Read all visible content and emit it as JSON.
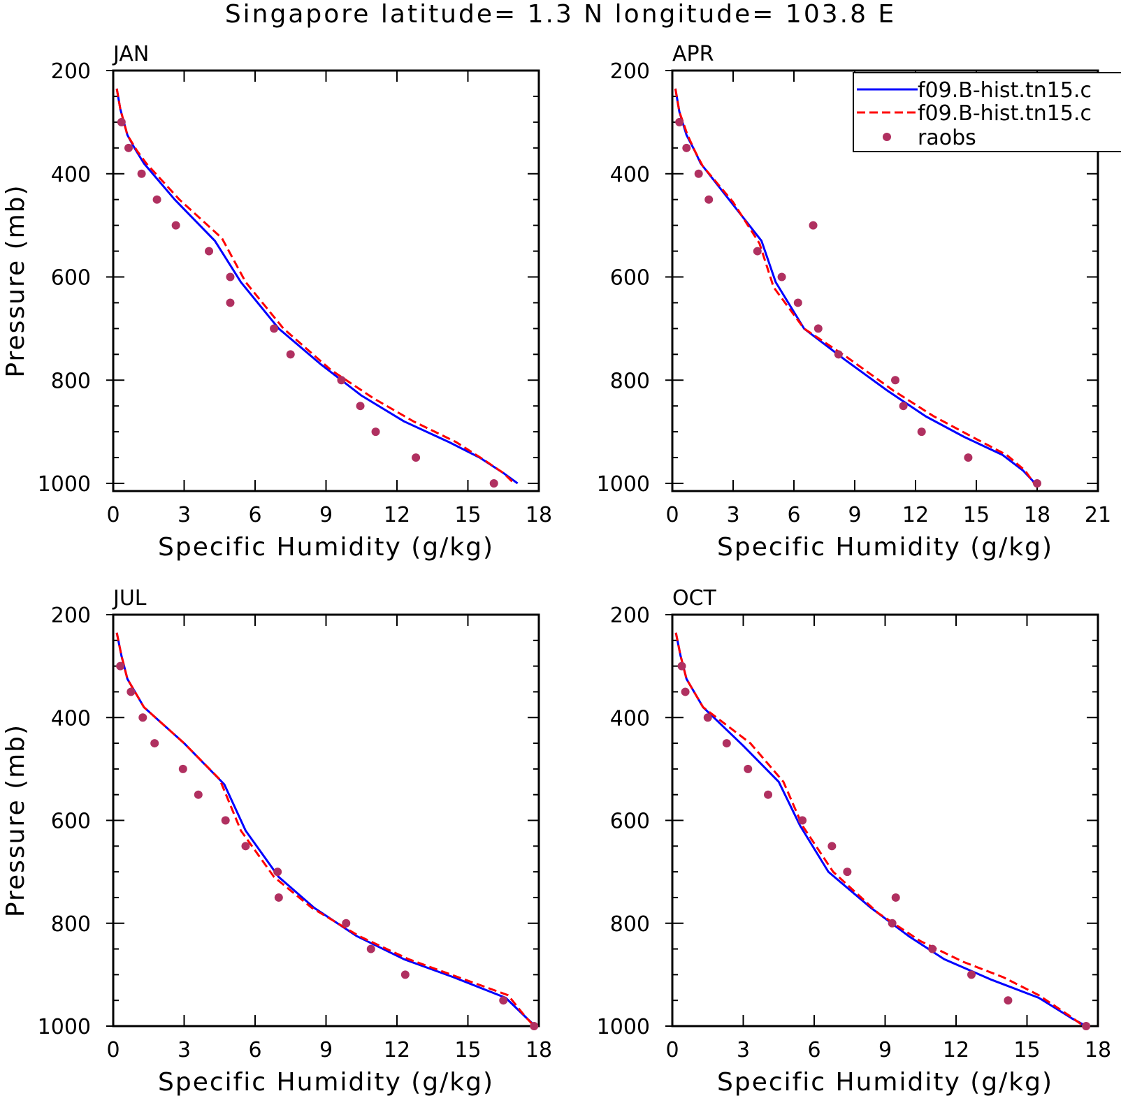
{
  "title": "Singapore  latitude= 1.3 N longitude= 103.8 E",
  "colors": {
    "model1": "#0000ff",
    "model2": "#ff0000",
    "obs": "#b03060",
    "axis": "#000000"
  },
  "legend": {
    "placement": "top-right of APR panel",
    "entries": [
      {
        "label": "f09.B-hist.tn15.c",
        "style": "solid",
        "color": "#0000ff"
      },
      {
        "label": "f09.B-hist.tn15.c",
        "style": "dashed",
        "color": "#ff0000"
      },
      {
        "label": "raobs",
        "style": "dot",
        "color": "#b03060"
      }
    ]
  },
  "chart_data": [
    {
      "type": "line",
      "panel_label": "JAN",
      "xlabel": "Specific Humidity (g/kg)",
      "ylabel": "Pressure (mb)",
      "xlim": [
        0,
        18
      ],
      "ylim": [
        1000,
        200
      ],
      "y_inverted": true,
      "xticks": [
        0,
        3,
        6,
        9,
        12,
        15,
        18
      ],
      "yticks": [
        200,
        400,
        600,
        800,
        1000
      ],
      "series": [
        {
          "name": "f09.B-hist.tn15.c",
          "style": "solid",
          "color": "#0000ff",
          "x": [
            0.15,
            0.3,
            0.6,
            0.9,
            1.3,
            2.6,
            4.3,
            5.4,
            7.0,
            8.8,
            10.5,
            12.3,
            14.2,
            15.5,
            16.5,
            17.1
          ],
          "y": [
            235,
            275,
            325,
            350,
            380,
            450,
            530,
            610,
            700,
            770,
            830,
            880,
            920,
            950,
            980,
            1000
          ]
        },
        {
          "name": "f09.B-hist.tn15.c",
          "style": "dashed",
          "color": "#ff0000",
          "x": [
            0.15,
            0.3,
            0.6,
            1.0,
            1.4,
            2.8,
            4.6,
            5.6,
            7.2,
            9.2,
            11.0,
            12.7,
            14.5,
            15.7,
            16.5,
            16.95
          ],
          "y": [
            235,
            275,
            325,
            355,
            380,
            450,
            525,
            610,
            700,
            780,
            835,
            880,
            920,
            955,
            980,
            1000
          ]
        },
        {
          "name": "raobs",
          "style": "dot",
          "color": "#b03060",
          "x": [
            0.35,
            0.65,
            1.2,
            1.85,
            2.65,
            4.05,
            4.95,
            4.95,
            6.8,
            7.5,
            9.65,
            10.45,
            11.1,
            12.8,
            16.1
          ],
          "y": [
            300,
            350,
            400,
            450,
            500,
            550,
            600,
            650,
            700,
            750,
            800,
            850,
            900,
            950,
            1000
          ]
        }
      ]
    },
    {
      "type": "line",
      "panel_label": "APR",
      "xlabel": "Specific Humidity (g/kg)",
      "ylabel": "",
      "xlim": [
        0,
        21
      ],
      "ylim": [
        1000,
        200
      ],
      "y_inverted": true,
      "xticks": [
        0,
        3,
        6,
        9,
        12,
        15,
        18,
        21
      ],
      "yticks": [
        200,
        400,
        600,
        800,
        1000
      ],
      "series": [
        {
          "name": "f09.B-hist.tn15.c",
          "style": "solid",
          "color": "#0000ff",
          "x": [
            0.15,
            0.35,
            0.7,
            1.1,
            1.4,
            2.9,
            4.4,
            5.1,
            6.5,
            8.5,
            10.6,
            12.5,
            14.4,
            16.3,
            17.3,
            17.9
          ],
          "y": [
            235,
            280,
            325,
            355,
            380,
            455,
            530,
            610,
            700,
            760,
            820,
            870,
            910,
            945,
            975,
            1000
          ]
        },
        {
          "name": "f09.B-hist.tn15.c",
          "style": "dashed",
          "color": "#ff0000",
          "x": [
            0.15,
            0.35,
            0.75,
            1.1,
            1.5,
            3.0,
            4.3,
            5.0,
            6.5,
            8.6,
            10.9,
            12.9,
            14.8,
            16.5,
            17.4,
            17.85
          ],
          "y": [
            235,
            280,
            325,
            355,
            385,
            455,
            535,
            620,
            700,
            755,
            820,
            870,
            910,
            945,
            975,
            1000
          ]
        },
        {
          "name": "raobs",
          "style": "dot",
          "color": "#b03060",
          "x": [
            0.35,
            0.7,
            1.3,
            1.8,
            6.95,
            4.2,
            5.4,
            6.2,
            7.2,
            8.2,
            11.0,
            11.4,
            12.3,
            14.6,
            18.0
          ],
          "y": [
            300,
            350,
            400,
            450,
            500,
            550,
            600,
            650,
            700,
            750,
            800,
            850,
            900,
            950,
            1000
          ]
        }
      ]
    },
    {
      "type": "line",
      "panel_label": "JUL",
      "xlabel": "Specific Humidity (g/kg)",
      "ylabel": "Pressure (mb)",
      "xlim": [
        0,
        18
      ],
      "ylim": [
        1000,
        200
      ],
      "y_inverted": true,
      "xticks": [
        0,
        3,
        6,
        9,
        12,
        15,
        18
      ],
      "yticks": [
        200,
        400,
        600,
        800,
        1000
      ],
      "series": [
        {
          "name": "f09.B-hist.tn15.c",
          "style": "solid",
          "color": "#0000ff",
          "x": [
            0.15,
            0.35,
            0.6,
            1.3,
            3.0,
            4.7,
            5.6,
            7.0,
            8.5,
            10.3,
            12.3,
            14.4,
            16.6,
            17.5,
            17.85
          ],
          "y": [
            235,
            280,
            325,
            380,
            450,
            530,
            620,
            710,
            770,
            825,
            870,
            905,
            945,
            985,
            1000
          ]
        },
        {
          "name": "f09.B-hist.tn15.c",
          "style": "dashed",
          "color": "#ff0000",
          "x": [
            0.15,
            0.35,
            0.6,
            1.3,
            3.0,
            4.5,
            5.4,
            6.8,
            8.4,
            10.4,
            12.5,
            14.6,
            16.7,
            17.4,
            17.8
          ],
          "y": [
            235,
            280,
            325,
            380,
            450,
            520,
            620,
            710,
            770,
            825,
            870,
            905,
            940,
            980,
            1000
          ]
        },
        {
          "name": "raobs",
          "style": "dot",
          "color": "#b03060",
          "x": [
            0.3,
            0.75,
            1.25,
            1.75,
            2.95,
            3.6,
            4.75,
            5.6,
            6.95,
            7.0,
            9.85,
            10.9,
            12.35,
            16.5,
            17.8
          ],
          "y": [
            300,
            350,
            400,
            450,
            500,
            550,
            600,
            650,
            700,
            750,
            800,
            850,
            900,
            950,
            1000
          ]
        }
      ]
    },
    {
      "type": "line",
      "panel_label": "OCT",
      "xlabel": "Specific Humidity (g/kg)",
      "ylabel": "",
      "xlim": [
        0,
        18
      ],
      "ylim": [
        1000,
        200
      ],
      "y_inverted": true,
      "xticks": [
        0,
        3,
        6,
        9,
        12,
        15,
        18
      ],
      "yticks": [
        200,
        400,
        600,
        800,
        1000
      ],
      "series": [
        {
          "name": "f09.B-hist.tn15.c",
          "style": "solid",
          "color": "#0000ff",
          "x": [
            0.15,
            0.35,
            0.6,
            1.3,
            3.0,
            4.5,
            5.4,
            6.6,
            8.4,
            10.0,
            11.5,
            13.5,
            15.5,
            16.9,
            17.5
          ],
          "y": [
            235,
            280,
            325,
            380,
            455,
            525,
            610,
            700,
            770,
            825,
            870,
            910,
            945,
            985,
            1000
          ]
        },
        {
          "name": "f09.B-hist.tn15.c",
          "style": "dashed",
          "color": "#ff0000",
          "x": [
            0.15,
            0.35,
            0.6,
            1.3,
            3.3,
            4.7,
            5.5,
            6.8,
            8.7,
            10.5,
            12.3,
            14.0,
            15.5,
            16.8,
            17.4
          ],
          "y": [
            235,
            280,
            325,
            380,
            450,
            525,
            610,
            700,
            780,
            835,
            875,
            905,
            940,
            980,
            1000
          ]
        },
        {
          "name": "raobs",
          "style": "dot",
          "color": "#b03060",
          "x": [
            0.4,
            0.55,
            1.5,
            2.3,
            3.2,
            4.05,
            5.5,
            6.75,
            7.4,
            9.45,
            9.3,
            11.0,
            12.65,
            14.2,
            17.5
          ],
          "y": [
            300,
            350,
            400,
            450,
            500,
            550,
            600,
            650,
            700,
            750,
            800,
            850,
            900,
            950,
            1000
          ]
        }
      ]
    }
  ]
}
